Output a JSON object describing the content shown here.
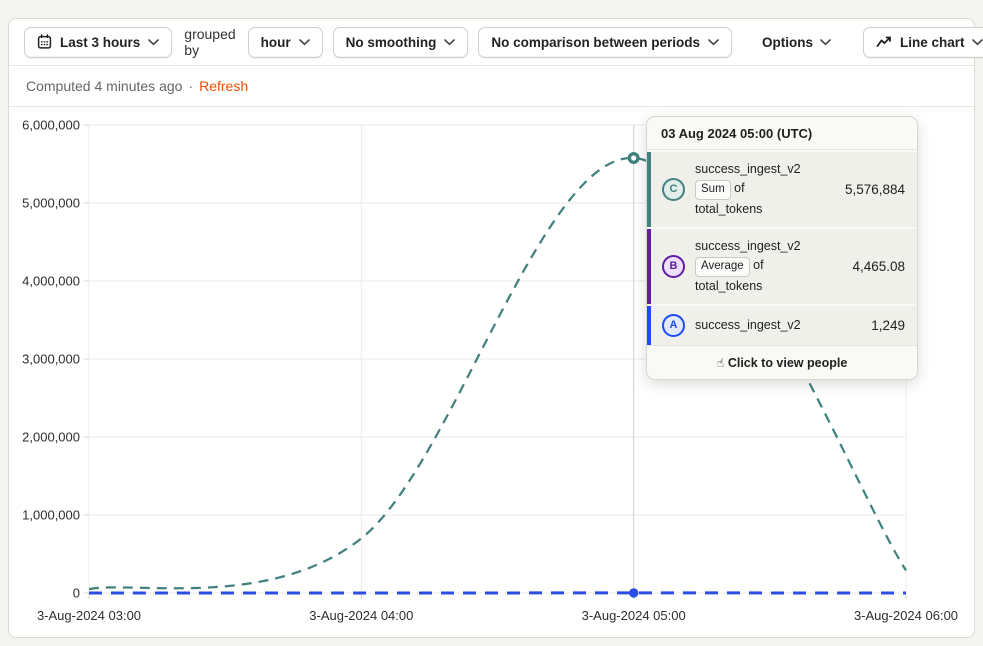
{
  "toolbar": {
    "date_range_label": "Last 3 hours",
    "grouped_by_text": "grouped by",
    "interval_label": "hour",
    "smoothing_label": "No smoothing",
    "comparison_label": "No comparison between periods",
    "options_label": "Options",
    "chart_type_label": "Line chart"
  },
  "status": {
    "computed_text": "Computed 4 minutes ago",
    "separator": "·",
    "refresh_label": "Refresh",
    "refresh_color": "#f54e00"
  },
  "tooltip": {
    "title": "03 Aug 2024 05:00 (UTC)",
    "rows": [
      {
        "letter": "C",
        "series": "success_ingest_v2",
        "aggregation": "Sum",
        "of_text": "of",
        "property": "total_tokens",
        "value": "5,576,884",
        "color": "#42827e",
        "tint": "#e1eeea"
      },
      {
        "letter": "B",
        "series": "success_ingest_v2",
        "aggregation": "Average",
        "of_text": "of",
        "property": "total_tokens",
        "value": "4,465.08",
        "color": "#621da6",
        "tint": "#ece1f6"
      },
      {
        "letter": "A",
        "series": "success_ingest_v2",
        "value": "1,249",
        "color": "#1d4aff",
        "tint": "#e2e9ff"
      }
    ],
    "footer": "Click to view people",
    "pointer_icon": "☝"
  },
  "chart_data": {
    "type": "line",
    "x": [
      "3-Aug-2024 03:00",
      "3-Aug-2024 04:00",
      "3-Aug-2024 05:00",
      "3-Aug-2024 06:00"
    ],
    "series": [
      {
        "letter": "C",
        "name": "Sum of total_tokens (success_ingest_v2)",
        "color": "#42827e",
        "style": "dashed",
        "dash": "10 7",
        "width": 2.25,
        "marker": "ring",
        "values": [
          50000,
          700000,
          5576884,
          290000
        ],
        "note": "only 05:00 value labeled (5,576,884); other points estimated from pixels"
      },
      {
        "letter": "B",
        "name": "Average of total_tokens (success_ingest_v2)",
        "color": "#621da6",
        "style": "dashed",
        "values": [
          null,
          null,
          4465.08,
          null
        ],
        "note": "line coincides with 0 baseline; only hovered value visible"
      },
      {
        "letter": "A",
        "name": "success_ingest_v2",
        "color": "#2b4ce6",
        "style": "dashed",
        "dash": "13 9",
        "width": 3,
        "marker": "dot",
        "values": [
          0,
          0,
          1249,
          0
        ]
      }
    ],
    "yticks": [
      "6,000,000",
      "5,000,000",
      "4,000,000",
      "3,000,000",
      "2,000,000",
      "1,000,000",
      "0"
    ],
    "ylim": [
      0,
      6000000
    ],
    "grid": true,
    "legend": "none",
    "hover_index": 2,
    "hover_x": "3-Aug-2024 05:00"
  }
}
